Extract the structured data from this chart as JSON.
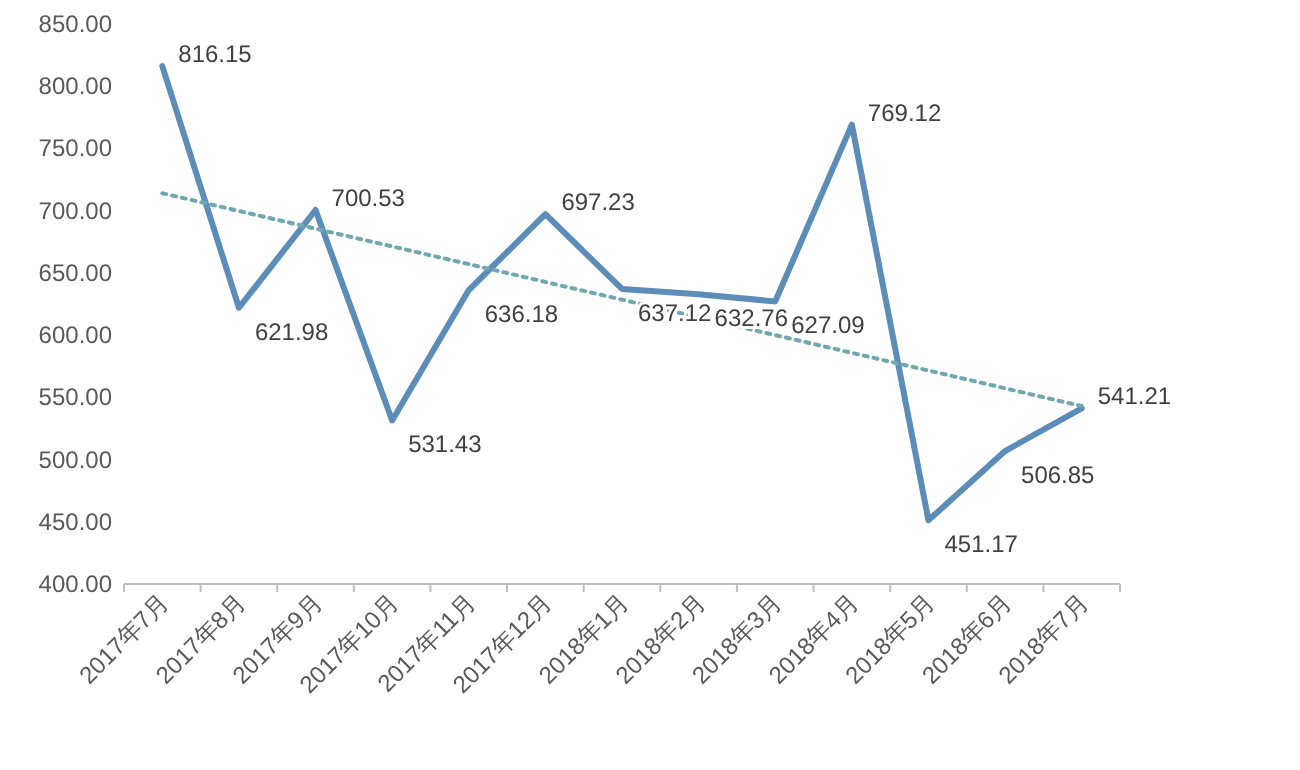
{
  "chart_data": {
    "type": "line",
    "categories": [
      "2017年7月",
      "2017年8月",
      "2017年9月",
      "2017年10月",
      "2017年11月",
      "2017年12月",
      "2018年1月",
      "2018年2月",
      "2018年3月",
      "2018年4月",
      "2018年5月",
      "2018年6月",
      "2018年7月"
    ],
    "series": [
      {
        "color": "#5b8db8",
        "values": [
          816.15,
          621.98,
          700.53,
          531.43,
          636.18,
          697.23,
          637.12,
          632.76,
          627.09,
          769.12,
          451.17,
          506.85,
          541.21
        ],
        "value_labels": [
          "816.15",
          "621.98",
          "700.53",
          "531.43",
          "636.18",
          "697.23",
          "637.12",
          "632.76",
          "627.09",
          "769.12",
          "451.17",
          "506.85",
          "541.21"
        ]
      },
      {
        "color": "#6fa8b0",
        "line_style": "dotted",
        "x": [
          "2017年7月",
          "2018年7月"
        ],
        "values": [
          714,
          543
        ]
      }
    ],
    "ylim": [
      400,
      850
    ],
    "yticks": [
      {
        "value": 400,
        "label": "400.00"
      },
      {
        "value": 450,
        "label": "450.00"
      },
      {
        "value": 500,
        "label": "500.00"
      },
      {
        "value": 550,
        "label": "550.00"
      },
      {
        "value": 600,
        "label": "600.00"
      },
      {
        "value": 650,
        "label": "650.00"
      },
      {
        "value": 700,
        "label": "700.00"
      },
      {
        "value": 750,
        "label": "750.00"
      },
      {
        "value": 800,
        "label": "800.00"
      },
      {
        "value": 850,
        "label": "850.00"
      }
    ]
  }
}
